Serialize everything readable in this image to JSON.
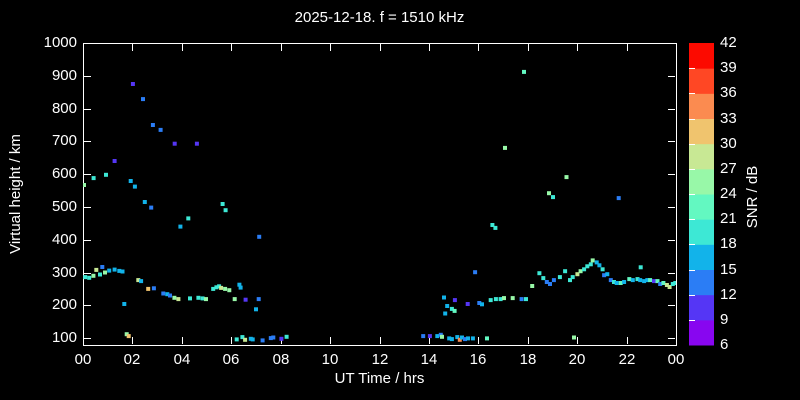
{
  "title": "2025-12-18. f = 1510 kHz",
  "axes": {
    "xlabel": "UT Time / hrs",
    "ylabel": "Virtual height / km",
    "x_tick_labels": [
      "00",
      "02",
      "04",
      "06",
      "08",
      "10",
      "12",
      "14",
      "16",
      "18",
      "20",
      "22",
      "00"
    ],
    "x_tick_hours": [
      0,
      2,
      4,
      6,
      8,
      10,
      12,
      14,
      16,
      18,
      20,
      22,
      24
    ],
    "y_tick_values": [
      100,
      200,
      300,
      400,
      500,
      600,
      700,
      800,
      900,
      1000
    ],
    "xlim": [
      0,
      24
    ],
    "ylim": [
      79,
      1000
    ],
    "grid": false
  },
  "colorbar": {
    "label": "SNR / dB",
    "tick_values": [
      6,
      9,
      12,
      15,
      18,
      21,
      24,
      27,
      30,
      33,
      36,
      39,
      42
    ],
    "range": [
      6,
      42
    ],
    "band_step": 3,
    "colors_low_to_high": [
      "#8806f0",
      "#5536f5",
      "#2b7df5",
      "#12b3ea",
      "#3de8d5",
      "#63f8c1",
      "#98f8a8",
      "#c8e894",
      "#f0c46e",
      "#fb8b50",
      "#ff4724",
      "#fc0a00"
    ]
  },
  "chart_data": {
    "type": "scatter",
    "title": "2025-12-18. f = 1510 kHz",
    "xlabel": "UT Time / hrs",
    "ylabel": "Virtual height / km",
    "color_value_label": "SNR / dB",
    "legend": "none",
    "marker": "square",
    "series": [
      {
        "name": "ionosonde-echoes",
        "point_format": [
          "time_hr",
          "height_km",
          "snr_db"
        ],
        "points": [
          [
            0.04,
            567,
            25
          ],
          [
            0.43,
            588,
            19
          ],
          [
            0.93,
            598,
            19
          ],
          [
            1.28,
            640,
            10
          ],
          [
            1.93,
            579,
            16
          ],
          [
            2.02,
            875,
            10
          ],
          [
            2.1,
            562,
            16
          ],
          [
            2.43,
            829,
            13
          ],
          [
            2.5,
            515,
            16
          ],
          [
            2.76,
            498,
            13
          ],
          [
            2.83,
            750,
            13
          ],
          [
            3.14,
            735,
            13
          ],
          [
            3.71,
            693,
            10
          ],
          [
            3.94,
            440,
            16
          ],
          [
            4.26,
            465,
            19
          ],
          [
            4.61,
            693,
            10
          ],
          [
            5.65,
            509,
            19
          ],
          [
            5.77,
            490,
            19
          ],
          [
            7.13,
            409,
            13
          ],
          [
            0.09,
            286,
            19
          ],
          [
            0.25,
            284,
            19
          ],
          [
            0.42,
            290,
            25
          ],
          [
            0.54,
            308,
            28
          ],
          [
            0.69,
            294,
            19
          ],
          [
            0.78,
            317,
            13
          ],
          [
            0.89,
            300,
            25
          ],
          [
            1.06,
            306,
            16
          ],
          [
            1.28,
            309,
            16
          ],
          [
            1.47,
            305,
            16
          ],
          [
            1.6,
            303,
            16
          ],
          [
            1.67,
            204,
            16
          ],
          [
            2.24,
            277,
            28
          ],
          [
            2.35,
            274,
            16
          ],
          [
            2.64,
            250,
            31
          ],
          [
            2.87,
            252,
            13
          ],
          [
            3.25,
            236,
            13
          ],
          [
            3.41,
            234,
            16
          ],
          [
            3.52,
            230,
            13
          ],
          [
            3.7,
            223,
            25
          ],
          [
            3.86,
            219,
            28
          ],
          [
            4.33,
            221,
            19
          ],
          [
            4.67,
            223,
            19
          ],
          [
            4.84,
            221,
            19
          ],
          [
            4.98,
            219,
            25
          ],
          [
            5.27,
            250,
            19
          ],
          [
            5.4,
            255,
            19
          ],
          [
            5.51,
            258,
            19
          ],
          [
            5.59,
            253,
            28
          ],
          [
            5.75,
            250,
            25
          ],
          [
            5.92,
            246,
            25
          ],
          [
            6.14,
            219,
            25
          ],
          [
            6.33,
            263,
            16
          ],
          [
            6.38,
            254,
            16
          ],
          [
            6.58,
            217,
            10
          ],
          [
            7.0,
            188,
            16
          ],
          [
            7.11,
            219,
            13
          ],
          [
            1.77,
            112,
            25
          ],
          [
            1.85,
            106,
            31
          ],
          [
            6.22,
            96,
            19
          ],
          [
            6.45,
            103,
            19
          ],
          [
            6.56,
            95,
            28
          ],
          [
            6.79,
            98,
            16
          ],
          [
            6.87,
            96,
            16
          ],
          [
            7.27,
            93,
            13
          ],
          [
            7.6,
            100,
            13
          ],
          [
            7.7,
            102,
            13
          ],
          [
            8.03,
            98,
            10
          ],
          [
            8.24,
            104,
            19
          ],
          [
            13.77,
            106,
            13
          ],
          [
            14.04,
            106,
            10
          ],
          [
            14.34,
            106,
            16
          ],
          [
            14.48,
            110,
            13
          ],
          [
            14.53,
            104,
            25
          ],
          [
            14.82,
            99,
            16
          ],
          [
            14.93,
            97,
            16
          ],
          [
            15.15,
            103,
            16
          ],
          [
            15.25,
            95,
            34
          ],
          [
            15.34,
            102,
            16
          ],
          [
            15.46,
            97,
            13
          ],
          [
            15.58,
            99,
            16
          ],
          [
            15.78,
            99,
            16
          ],
          [
            16.35,
            99,
            22
          ],
          [
            19.87,
            102,
            25
          ],
          [
            14.61,
            224,
            16
          ],
          [
            14.66,
            175,
            16
          ],
          [
            14.74,
            198,
            16
          ],
          [
            14.93,
            189,
            19
          ],
          [
            15.04,
            183,
            22
          ],
          [
            15.05,
            216,
            10
          ],
          [
            15.57,
            204,
            10
          ],
          [
            15.87,
            301,
            13
          ],
          [
            16.04,
            207,
            13
          ],
          [
            16.15,
            203,
            16
          ],
          [
            16.5,
            216,
            19
          ],
          [
            16.71,
            219,
            19
          ],
          [
            16.9,
            219,
            19
          ],
          [
            17.04,
            222,
            25
          ],
          [
            17.39,
            222,
            25
          ],
          [
            17.75,
            219,
            13
          ],
          [
            17.93,
            219,
            19
          ],
          [
            18.18,
            259,
            25
          ],
          [
            18.47,
            298,
            19
          ],
          [
            18.63,
            283,
            19
          ],
          [
            18.77,
            271,
            13
          ],
          [
            18.9,
            265,
            13
          ],
          [
            19.06,
            277,
            13
          ],
          [
            19.3,
            286,
            19
          ],
          [
            19.51,
            304,
            19
          ],
          [
            19.71,
            277,
            19
          ],
          [
            19.82,
            286,
            19
          ],
          [
            20.01,
            295,
            28
          ],
          [
            20.14,
            304,
            25
          ],
          [
            20.28,
            310,
            19
          ],
          [
            20.41,
            319,
            19
          ],
          [
            20.55,
            325,
            19
          ],
          [
            20.63,
            337,
            25
          ],
          [
            20.79,
            331,
            16
          ],
          [
            20.9,
            322,
            16
          ],
          [
            21.03,
            310,
            19
          ],
          [
            21.09,
            292,
            13
          ],
          [
            21.22,
            295,
            16
          ],
          [
            21.36,
            277,
            13
          ],
          [
            21.49,
            271,
            19
          ],
          [
            21.6,
            268,
            16
          ],
          [
            21.76,
            268,
            22
          ],
          [
            21.9,
            271,
            16
          ],
          [
            22.11,
            280,
            22
          ],
          [
            22.25,
            277,
            16
          ],
          [
            22.44,
            280,
            19
          ],
          [
            22.55,
            277,
            16
          ],
          [
            22.57,
            316,
            19
          ],
          [
            22.71,
            274,
            16
          ],
          [
            22.84,
            277,
            16
          ],
          [
            22.95,
            277,
            22
          ],
          [
            23.11,
            274,
            10
          ],
          [
            23.25,
            274,
            22
          ],
          [
            23.36,
            265,
            13
          ],
          [
            23.49,
            268,
            22
          ],
          [
            23.63,
            262,
            28
          ],
          [
            23.74,
            256,
            28
          ],
          [
            23.87,
            265,
            19
          ],
          [
            23.97,
            268,
            19
          ],
          [
            16.57,
            445,
            19
          ],
          [
            16.69,
            436,
            19
          ],
          [
            17.08,
            680,
            25
          ],
          [
            17.85,
            912,
            22
          ],
          [
            18.86,
            542,
            25
          ],
          [
            19.02,
            530,
            19
          ],
          [
            19.57,
            591,
            25
          ],
          [
            21.68,
            527,
            13
          ]
        ]
      }
    ]
  }
}
